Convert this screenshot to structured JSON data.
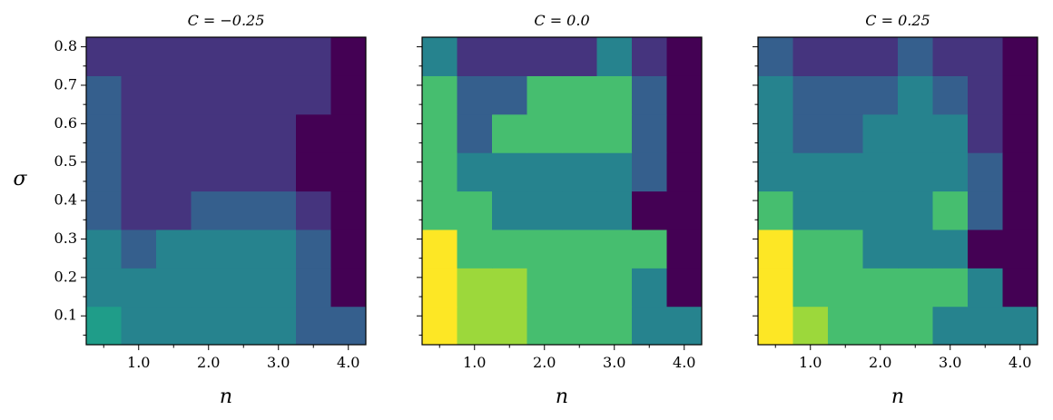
{
  "chart_data": {
    "type": "heatmap",
    "x_ticks": [
      1.0,
      2.0,
      3.0,
      4.0
    ],
    "x_tick_labels": [
      "1.0",
      "2.0",
      "3.0",
      "4.0"
    ],
    "y_ticks": [
      0.1,
      0.2,
      0.3,
      0.4,
      0.5,
      0.6,
      0.7,
      0.8
    ],
    "y_tick_labels": [
      "0.1",
      "0.2",
      "0.3",
      "0.4",
      "0.5",
      "0.6",
      "0.7",
      "0.8"
    ],
    "xlabel": "n",
    "ylabel": "σ",
    "colormap": "viridis",
    "grid": false,
    "panels": [
      {
        "title": "C = −0.25",
        "x_centers": [
          0.5,
          1.0,
          1.5,
          2.0,
          2.5,
          3.0,
          3.5,
          4.0
        ],
        "y_centers": [
          0.05,
          0.15,
          0.25,
          0.35,
          0.45,
          0.55,
          0.65,
          0.75
        ],
        "values": [
          [
            0.55,
            0.45,
            0.45,
            0.45,
            0.45,
            0.45,
            0.3,
            0.3
          ],
          [
            0.45,
            0.45,
            0.45,
            0.45,
            0.45,
            0.45,
            0.3,
            0.0
          ],
          [
            0.45,
            0.3,
            0.45,
            0.45,
            0.45,
            0.45,
            0.3,
            0.0
          ],
          [
            0.3,
            0.15,
            0.15,
            0.3,
            0.3,
            0.3,
            0.15,
            0.0
          ],
          [
            0.3,
            0.15,
            0.15,
            0.15,
            0.15,
            0.15,
            0.0,
            0.0
          ],
          [
            0.3,
            0.15,
            0.15,
            0.15,
            0.15,
            0.15,
            0.0,
            0.0
          ],
          [
            0.3,
            0.15,
            0.15,
            0.15,
            0.15,
            0.15,
            0.15,
            0.0
          ],
          [
            0.15,
            0.15,
            0.15,
            0.15,
            0.15,
            0.15,
            0.15,
            0.0
          ]
        ]
      },
      {
        "title": "C = 0.0",
        "x_centers": [
          0.5,
          1.0,
          1.5,
          2.0,
          2.5,
          3.0,
          3.5,
          4.0
        ],
        "y_centers": [
          0.05,
          0.15,
          0.25,
          0.35,
          0.45,
          0.55,
          0.65,
          0.75
        ],
        "values": [
          [
            1.0,
            0.85,
            0.85,
            0.7,
            0.7,
            0.7,
            0.45,
            0.45
          ],
          [
            1.0,
            0.85,
            0.85,
            0.7,
            0.7,
            0.7,
            0.45,
            0.0
          ],
          [
            1.0,
            0.7,
            0.7,
            0.7,
            0.7,
            0.7,
            0.7,
            0.0
          ],
          [
            0.7,
            0.7,
            0.45,
            0.45,
            0.45,
            0.45,
            0.0,
            0.0
          ],
          [
            0.7,
            0.45,
            0.45,
            0.45,
            0.45,
            0.45,
            0.3,
            0.0
          ],
          [
            0.7,
            0.3,
            0.7,
            0.7,
            0.7,
            0.7,
            0.3,
            0.0
          ],
          [
            0.7,
            0.3,
            0.3,
            0.7,
            0.7,
            0.7,
            0.3,
            0.0
          ],
          [
            0.45,
            0.15,
            0.15,
            0.15,
            0.15,
            0.45,
            0.15,
            0.0
          ]
        ]
      },
      {
        "title": "C = 0.25",
        "x_centers": [
          0.5,
          1.0,
          1.5,
          2.0,
          2.5,
          3.0,
          3.5,
          4.0
        ],
        "y_centers": [
          0.05,
          0.15,
          0.25,
          0.35,
          0.45,
          0.55,
          0.65,
          0.75
        ],
        "values": [
          [
            1.0,
            0.85,
            0.7,
            0.7,
            0.7,
            0.45,
            0.45,
            0.45
          ],
          [
            1.0,
            0.7,
            0.7,
            0.7,
            0.7,
            0.7,
            0.45,
            0.0
          ],
          [
            1.0,
            0.7,
            0.7,
            0.45,
            0.45,
            0.45,
            0.0,
            0.0
          ],
          [
            0.7,
            0.45,
            0.45,
            0.45,
            0.45,
            0.7,
            0.3,
            0.0
          ],
          [
            0.45,
            0.45,
            0.45,
            0.45,
            0.45,
            0.45,
            0.3,
            0.0
          ],
          [
            0.45,
            0.3,
            0.3,
            0.45,
            0.45,
            0.45,
            0.15,
            0.0
          ],
          [
            0.45,
            0.3,
            0.3,
            0.3,
            0.45,
            0.3,
            0.15,
            0.0
          ],
          [
            0.3,
            0.15,
            0.15,
            0.15,
            0.3,
            0.15,
            0.15,
            0.0
          ]
        ]
      }
    ]
  }
}
